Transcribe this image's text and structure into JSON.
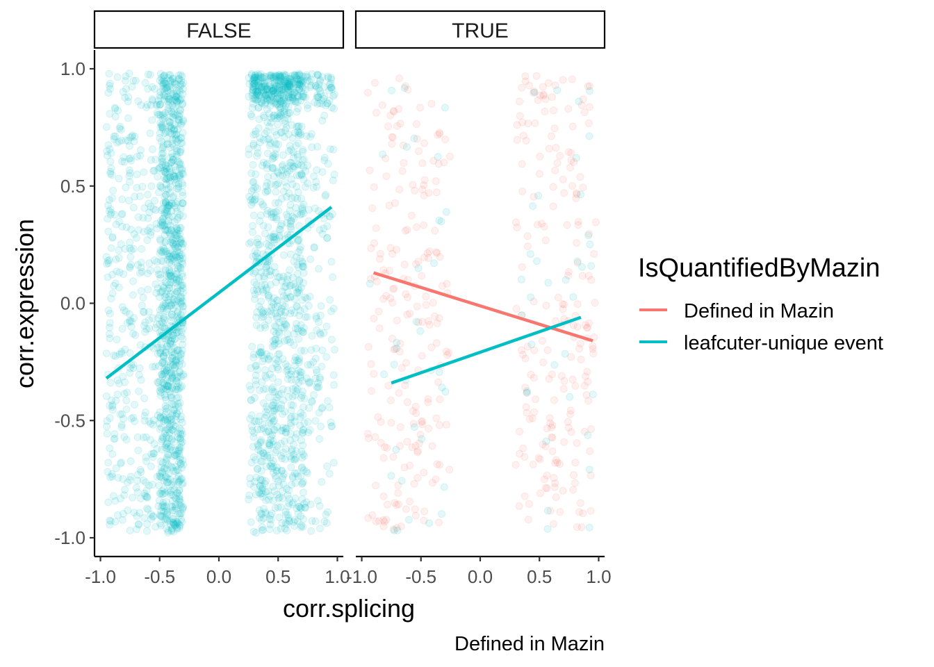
{
  "chart_data": {
    "type": "scatter",
    "facets": [
      "FALSE",
      "TRUE"
    ],
    "xlabel": "corr.splicing",
    "ylabel": "corr.expression",
    "caption": "Defined in Mazin",
    "xlim": [
      -1.05,
      1.05
    ],
    "ylim": [
      -1.08,
      1.08
    ],
    "x_ticks": [
      "-1.0",
      "-0.5",
      "0.0",
      "0.5",
      "1.0"
    ],
    "y_ticks": [
      "-1.0",
      "-0.5",
      "0.0",
      "0.5",
      "1.0"
    ],
    "legend": {
      "title": "IsQuantifiedByMazin",
      "position": "right",
      "items": [
        "Defined in Mazin",
        "leafcuter-unique event"
      ]
    },
    "colors": {
      "Defined in Mazin": "#F8766D",
      "leafcuter-unique event": "#00BFC4"
    },
    "point_alpha": 0.1,
    "series": [
      {
        "name": "leafcuter-unique event",
        "facet": "FALSE",
        "x_clusters": [
          [
            -0.95,
            -0.3
          ],
          [
            0.25,
            0.98
          ]
        ],
        "dense_bands": [
          [
            -0.5,
            -0.3
          ],
          [
            0.28,
            0.72
          ]
        ],
        "y_range": [
          -0.98,
          0.98
        ],
        "approx_points": 2600,
        "trend_line": {
          "x": [
            -0.95,
            0.95
          ],
          "y": [
            -0.32,
            0.41
          ]
        }
      },
      {
        "name": "Defined in Mazin",
        "facet": "TRUE",
        "x_clusters": [
          [
            -0.95,
            -0.25
          ],
          [
            0.3,
            0.98
          ]
        ],
        "y_range": [
          -0.97,
          0.97
        ],
        "approx_points": 420,
        "trend_line": {
          "x": [
            -0.9,
            0.95
          ],
          "y": [
            0.13,
            -0.16
          ]
        }
      },
      {
        "name": "leafcuter-unique event",
        "facet": "TRUE",
        "x_clusters": [
          [
            -0.95,
            -0.25
          ],
          [
            0.3,
            0.98
          ]
        ],
        "y_range": [
          -0.97,
          0.97
        ],
        "approx_points": 70,
        "trend_line": {
          "x": [
            -0.75,
            0.85
          ],
          "y": [
            -0.34,
            -0.06
          ]
        }
      }
    ]
  }
}
